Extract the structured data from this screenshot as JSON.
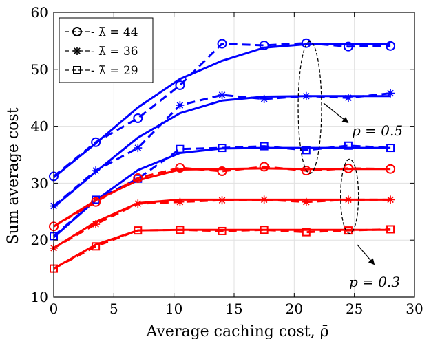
{
  "chart_data": {
    "type": "line",
    "title": "",
    "xlabel": "Average caching cost, ρ̄",
    "ylabel": "Sum average cost",
    "xlim": [
      0,
      30
    ],
    "ylim": [
      10,
      60
    ],
    "xticks": [
      0,
      5,
      10,
      15,
      20,
      25,
      30
    ],
    "yticks": [
      10,
      20,
      30,
      40,
      50,
      60
    ],
    "grid": true,
    "legend_position": "top-left",
    "colors": {
      "p05": "#0000ff",
      "p03": "#ff0000"
    },
    "legend": [
      {
        "label": "- λ̄ = 44",
        "marker": "circle"
      },
      {
        "label": "- λ̄ = 36",
        "marker": "star"
      },
      {
        "label": "- λ̄ = 29",
        "marker": "square"
      }
    ],
    "annotations": [
      {
        "text": "p = 0.5",
        "group": "p05"
      },
      {
        "text": "p = 0.3",
        "group": "p03"
      }
    ],
    "series": [
      {
        "group": "p05",
        "marker": "circle",
        "style": "dashed",
        "x": [
          0,
          3.5,
          7,
          10.5,
          14,
          17.5,
          21,
          24.5,
          28
        ],
        "y": [
          31.2,
          37.2,
          41.4,
          47.2,
          54.5,
          54.2,
          54.6,
          54.0,
          54.1
        ]
      },
      {
        "group": "p05",
        "marker": "circle",
        "style": "solid",
        "x": [
          0,
          3.5,
          7,
          10.5,
          14,
          17.5,
          21,
          24.5,
          28
        ],
        "y": [
          31.0,
          37.0,
          43.3,
          48.3,
          51.5,
          53.8,
          54.4,
          54.4,
          54.4
        ]
      },
      {
        "group": "p05",
        "marker": "star",
        "style": "dashed",
        "x": [
          0,
          3.5,
          7,
          10.5,
          14,
          17.5,
          21,
          24.5,
          28
        ],
        "y": [
          26.0,
          32.2,
          36.2,
          43.7,
          45.5,
          44.8,
          45.3,
          45.0,
          45.8
        ]
      },
      {
        "group": "p05",
        "marker": "star",
        "style": "solid",
        "x": [
          0,
          3.5,
          7,
          10.5,
          14,
          17.5,
          21,
          24.5,
          28
        ],
        "y": [
          25.8,
          32.0,
          38.0,
          42.3,
          44.5,
          45.2,
          45.3,
          45.3,
          45.3
        ]
      },
      {
        "group": "p05",
        "marker": "square",
        "style": "dashed",
        "x": [
          0,
          3.5,
          7,
          10.5,
          14,
          17.5,
          21,
          24.5,
          28
        ],
        "y": [
          20.7,
          27.1,
          30.8,
          36.0,
          36.2,
          36.5,
          35.8,
          36.6,
          36.2
        ]
      },
      {
        "group": "p05",
        "marker": "square",
        "style": "solid",
        "x": [
          0,
          3.5,
          7,
          10.5,
          14,
          17.5,
          21,
          24.5,
          28
        ],
        "y": [
          20.5,
          27.0,
          32.3,
          35.3,
          36.1,
          36.2,
          36.2,
          36.2,
          36.2
        ]
      },
      {
        "group": "p03",
        "marker": "circle",
        "style": "dashed",
        "x": [
          0,
          3.5,
          7,
          10.5,
          14,
          17.5,
          21,
          24.5,
          28
        ],
        "y": [
          22.4,
          26.7,
          30.9,
          32.7,
          32.1,
          32.9,
          32.2,
          32.6,
          32.5
        ]
      },
      {
        "group": "p03",
        "marker": "circle",
        "style": "solid",
        "x": [
          0,
          3.5,
          7,
          10.5,
          14,
          17.5,
          21,
          24.5,
          28
        ],
        "y": [
          22.4,
          27.0,
          30.5,
          32.4,
          32.5,
          32.6,
          32.5,
          32.5,
          32.5
        ]
      },
      {
        "group": "p03",
        "marker": "star",
        "style": "dashed",
        "x": [
          0,
          3.5,
          7,
          10.5,
          14,
          17.5,
          21,
          24.5,
          28
        ],
        "y": [
          18.6,
          22.8,
          26.4,
          26.7,
          27.0,
          27.1,
          26.7,
          27.1,
          27.1
        ]
      },
      {
        "group": "p03",
        "marker": "star",
        "style": "solid",
        "x": [
          0,
          3.5,
          7,
          10.5,
          14,
          17.5,
          21,
          24.5,
          28
        ],
        "y": [
          18.6,
          23.2,
          26.5,
          27.1,
          27.1,
          27.1,
          27.1,
          27.1,
          27.1
        ]
      },
      {
        "group": "p03",
        "marker": "square",
        "style": "dashed",
        "x": [
          0,
          3.5,
          7,
          10.5,
          14,
          17.5,
          21,
          24.5,
          28
        ],
        "y": [
          15.0,
          18.9,
          21.7,
          21.8,
          21.6,
          21.8,
          21.4,
          21.7,
          21.9
        ]
      },
      {
        "group": "p03",
        "marker": "square",
        "style": "solid",
        "x": [
          0,
          3.5,
          7,
          10.5,
          14,
          17.5,
          21,
          24.5,
          28
        ],
        "y": [
          15.0,
          19.2,
          21.7,
          21.8,
          21.8,
          21.8,
          21.8,
          21.8,
          21.8
        ]
      }
    ]
  }
}
